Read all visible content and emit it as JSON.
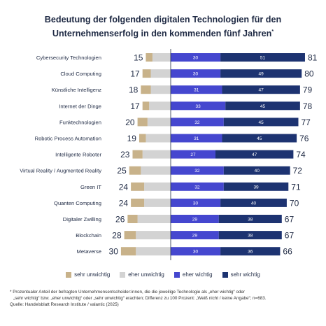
{
  "title_line1": "Bedeutung der folgenden digitalen Technologien für den",
  "title_line2": "Unternehmenserfolg in den kommenden fünf Jahren",
  "title_mark": "*",
  "colors": {
    "sehr_unwichtig": "#c8b28a",
    "eher_unwichtig": "#d3d3d3",
    "eher_wichtig": "#4547cf",
    "sehr_wichtig": "#1d3371",
    "text": "#1f2a44"
  },
  "legend": [
    {
      "label": "sehr unwichtig",
      "color": "#c8b28a"
    },
    {
      "label": "eher unwichtig",
      "color": "#d3d3d3"
    },
    {
      "label": "eher wichtig",
      "color": "#4547cf"
    },
    {
      "label": "sehr wichtig",
      "color": "#1d3371"
    }
  ],
  "chart_data": {
    "type": "bar",
    "orientation": "horizontal-diverging",
    "categories": [
      "Cybersecurity Technologien",
      "Cloud Computing",
      "Künstliche Intelligenz",
      "Internet der Dinge",
      "Funktechnologien",
      "Robotic Process Automation",
      "Intelligente Roboter",
      "Virtual Reality / Augmented Reality",
      "Green IT",
      "Quanten Computing",
      "Digitaler Zwilling",
      "Blockchain",
      "Metaverse"
    ],
    "negative_total": [
      15,
      17,
      18,
      17,
      20,
      19,
      23,
      25,
      24,
      24,
      26,
      28,
      30
    ],
    "positive_total": [
      81,
      80,
      79,
      78,
      77,
      76,
      74,
      72,
      71,
      70,
      67,
      67,
      66
    ],
    "series": [
      {
        "name": "sehr unwichtig",
        "values": [
          4,
          5,
          6,
          4,
          6,
          4,
          6,
          7,
          8,
          8,
          6,
          7,
          9
        ]
      },
      {
        "name": "eher unwichtig",
        "values": [
          11,
          12,
          12,
          13,
          14,
          15,
          17,
          18,
          16,
          16,
          20,
          21,
          21
        ]
      },
      {
        "name": "eher wichtig",
        "values": [
          30,
          30,
          31,
          33,
          32,
          31,
          27,
          32,
          32,
          30,
          29,
          29,
          30
        ]
      },
      {
        "name": "sehr wichtig",
        "values": [
          51,
          49,
          47,
          45,
          45,
          45,
          47,
          40,
          39,
          40,
          38,
          38,
          36
        ]
      }
    ]
  },
  "footnote_line1": "* Prozentualer Anteil der befragten Unternehmensentscheider:innen, die die jeweilige Technologie als „eher wichtig“ oder",
  "footnote_line2": "„sehr wichtig“ bzw. „eher unwichtig“ oder „sehr unwichtig“ erachten; Differenz zu 100 Prozent: „Weiß nicht / keine Angabe“; n=683.",
  "source": "Quelle: Handelsblatt Research Institute / valantic (2025)"
}
